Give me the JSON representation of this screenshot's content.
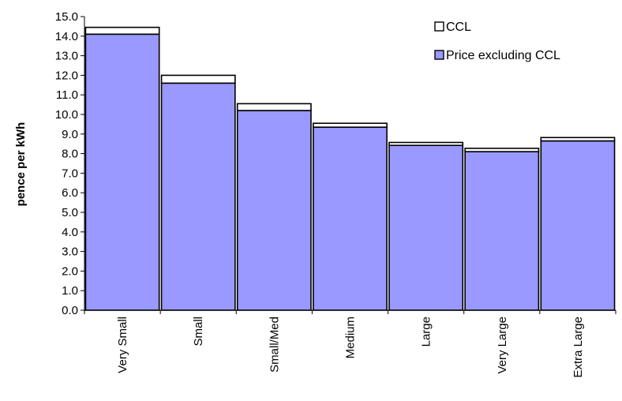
{
  "chart_data": {
    "type": "bar",
    "stacked": true,
    "title": "",
    "xlabel": "",
    "ylabel": "pence per kWh",
    "ylim": [
      0,
      15
    ],
    "ytick_step": 1,
    "grid": false,
    "legend_position": "top-right",
    "categories": [
      "Very Small",
      "Small",
      "Small/Med",
      "Medium",
      "Large",
      "Very Large",
      "Extra Large"
    ],
    "series": [
      {
        "name": "Price excluding CCL",
        "color": "#9999ff",
        "values": [
          14.1,
          11.6,
          10.2,
          9.35,
          8.42,
          8.1,
          8.65
        ]
      },
      {
        "name": "CCL",
        "color": "#ffffff",
        "values": [
          0.35,
          0.4,
          0.35,
          0.2,
          0.15,
          0.17,
          0.17
        ]
      }
    ],
    "legend_order": [
      "CCL",
      "Price excluding CCL"
    ]
  }
}
